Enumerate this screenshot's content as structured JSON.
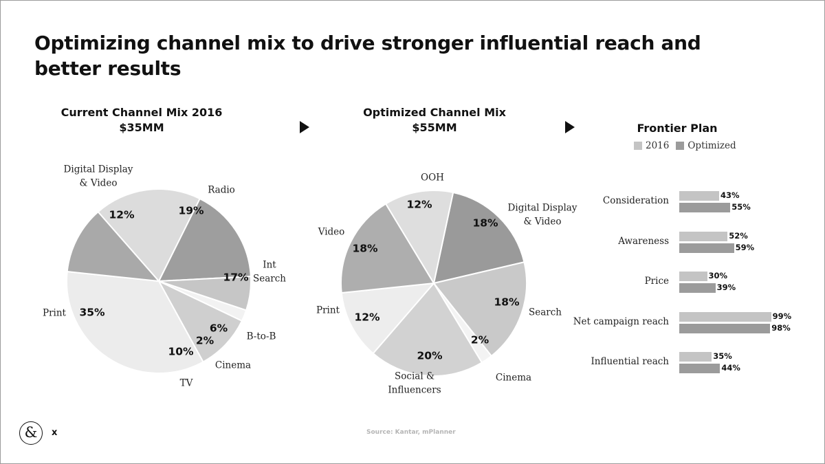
{
  "title": "Optimizing channel mix to drive stronger influential reach and better results",
  "source": "Source: Kantar, mPlanner",
  "logo": {
    "glyph": "&",
    "suffix": "x"
  },
  "colors": {
    "text": "#111111",
    "series_2016": "#c4c4c4",
    "series_optimized": "#9b9b9b"
  },
  "chart_data": [
    {
      "type": "pie",
      "title": "Current Channel Mix 2016",
      "subtitle": "$35MM",
      "start_category": "Radio",
      "slices": [
        {
          "label": "Radio",
          "label_lines": [
            "Radio"
          ],
          "value": 19,
          "display": "19%",
          "color": "#dcdcdc"
        },
        {
          "label": "Int Search",
          "label_lines": [
            "Int",
            "Search"
          ],
          "value": 17,
          "display": "17%",
          "color": "#9e9e9e"
        },
        {
          "label": "B-to-B",
          "label_lines": [
            "B-to-B"
          ],
          "value": 6,
          "display": "6%",
          "color": "#c6c6c6"
        },
        {
          "label": "Cinema",
          "label_lines": [
            "Cinema"
          ],
          "value": 2,
          "display": "2%",
          "color": "#f2f2f2"
        },
        {
          "label": "TV",
          "label_lines": [
            "TV"
          ],
          "value": 10,
          "display": "10%",
          "color": "#cfcfcf"
        },
        {
          "label": "Print",
          "label_lines": [
            "Print"
          ],
          "value": 35,
          "display": "35%",
          "color": "#ececec"
        },
        {
          "label": "Digital Display & Video",
          "label_lines": [
            "Digital Display",
            "& Video"
          ],
          "value": 12,
          "display": "12%",
          "color": "#a9a9a9"
        }
      ]
    },
    {
      "type": "pie",
      "title": "Optimized Channel Mix",
      "subtitle": "$55MM",
      "start_category": "Digital Display & Video",
      "slices": [
        {
          "label": "Digital Display & Video",
          "label_lines": [
            "Digital Display",
            "& Video"
          ],
          "value": 18,
          "display": "18%",
          "color": "#9a9a9a"
        },
        {
          "label": "Search",
          "label_lines": [
            "Search"
          ],
          "value": 18,
          "display": "18%",
          "color": "#c9c9c9"
        },
        {
          "label": "Cinema",
          "label_lines": [
            "Cinema"
          ],
          "value": 2,
          "display": "2%",
          "color": "#f3f3f3"
        },
        {
          "label": "Social & Influencers",
          "label_lines": [
            "Social &",
            "Influencers"
          ],
          "value": 20,
          "display": "20%",
          "color": "#d2d2d2"
        },
        {
          "label": "Print",
          "label_lines": [
            "Print"
          ],
          "value": 12,
          "display": "12%",
          "color": "#ededed"
        },
        {
          "label": "Video",
          "label_lines": [
            "Video"
          ],
          "value": 18,
          "display": "18%",
          "color": "#aeaeae"
        },
        {
          "label": "OOH",
          "label_lines": [
            "OOH"
          ],
          "value": 12,
          "display": "12%",
          "color": "#dedede"
        }
      ]
    },
    {
      "type": "bar",
      "orientation": "horizontal",
      "title": "Frontier Plan",
      "legend_position": "top",
      "categories": [
        "Consideration",
        "Awareness",
        "Price",
        "Net campaign reach",
        "Influential reach"
      ],
      "series": [
        {
          "name": "2016",
          "values": [
            43,
            52,
            30,
            99,
            35
          ],
          "color": "#c4c4c4"
        },
        {
          "name": "Optimized",
          "values": [
            55,
            59,
            39,
            98,
            44
          ],
          "color": "#9b9b9b"
        }
      ],
      "xlim": [
        0,
        100
      ]
    }
  ]
}
